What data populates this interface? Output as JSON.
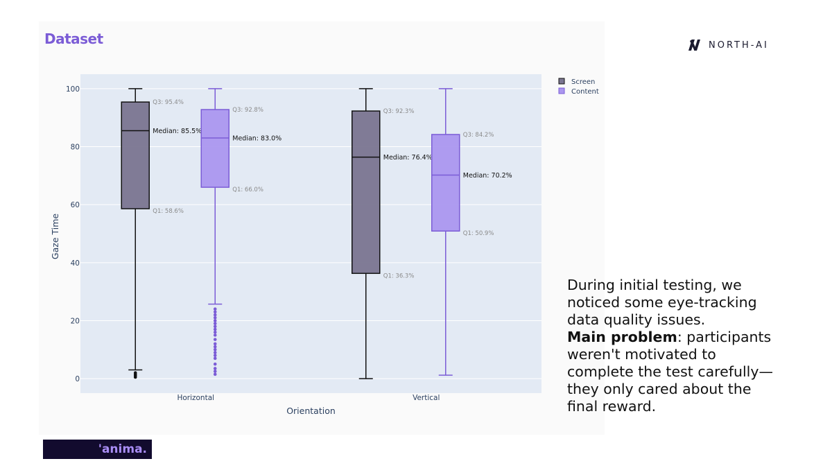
{
  "slide": {
    "title": "Dataset",
    "brand_name": "NORTH-AI",
    "footer_logo_text": "'anima.",
    "notes_line1": "During initial testing, we noticed some eye-tracking data quality issues.",
    "notes_bold": "Main problem",
    "notes_rest": ": participants weren't motivated to complete the test carefully—they only cared about the final reward."
  },
  "colors": {
    "accent": "#7b5cd6",
    "screen_fill": "#7a7590",
    "screen_line": "#111111",
    "content_fill": "#ab97ef",
    "content_line": "#7b5cd6",
    "plot_bg": "#e3eaf4"
  },
  "chart_data": {
    "type": "box",
    "xlabel": "Orientation",
    "ylabel": "Gaze Time",
    "ylim": [
      -5,
      105
    ],
    "yticks": [
      0,
      20,
      40,
      60,
      80,
      100
    ],
    "categories": [
      "Horizontal",
      "Vertical"
    ],
    "grid": true,
    "legend_position": "top-right",
    "series": [
      {
        "name": "Screen",
        "boxes": [
          {
            "category": "Horizontal",
            "min": 3,
            "q1": 58.6,
            "median": 85.5,
            "q3": 95.4,
            "max": 100,
            "q1_label": "Q1: 58.6%",
            "median_label": "Median: 85.5%",
            "q3_label": "Q3: 95.4%",
            "outliers": [
              0.5,
              1.0,
              1.5,
              2.0
            ]
          },
          {
            "category": "Vertical",
            "min": 0,
            "q1": 36.3,
            "median": 76.4,
            "q3": 92.3,
            "max": 100,
            "q1_label": "Q1: 36.3%",
            "median_label": "Median: 76.4%",
            "q3_label": "Q3: 92.3%",
            "outliers": []
          }
        ]
      },
      {
        "name": "Content",
        "boxes": [
          {
            "category": "Horizontal",
            "min": 25.7,
            "q1": 66.0,
            "median": 83.0,
            "q3": 92.8,
            "max": 100,
            "q1_label": "Q1: 66.0%",
            "median_label": "Median: 83.0%",
            "q3_label": "Q3: 92.8%",
            "outliers": [
              1.5,
              2.5,
              3.5,
              5,
              7,
              8,
              9,
              10,
              11,
              12,
              13.5,
              15,
              16,
              17,
              18,
              19,
              20,
              21,
              22,
              23,
              24
            ]
          },
          {
            "category": "Vertical",
            "min": 1.2,
            "q1": 50.9,
            "median": 70.2,
            "q3": 84.2,
            "max": 100,
            "q1_label": "Q1: 50.9%",
            "median_label": "Median: 70.2%",
            "q3_label": "Q3: 84.2%",
            "outliers": []
          }
        ]
      }
    ]
  }
}
